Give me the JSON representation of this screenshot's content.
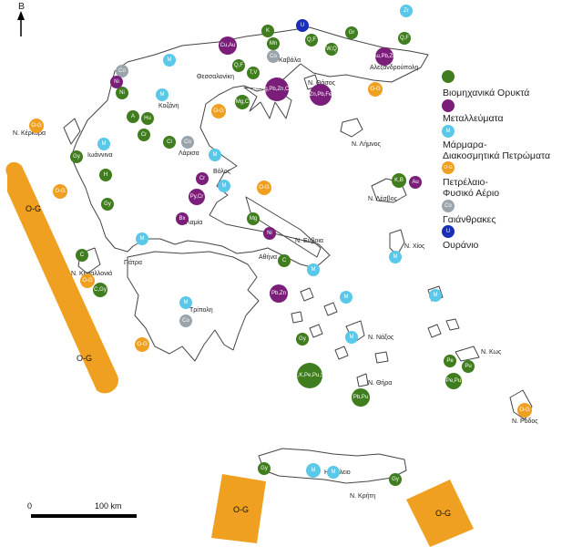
{
  "north": {
    "label": "B"
  },
  "legend": [
    {
      "label": "Βιομηχανικά Ορυκτά",
      "color": "#3f7d1e",
      "code": ""
    },
    {
      "label": "Μεταλλεύματα",
      "color": "#7b1e7a",
      "code": ""
    },
    {
      "label": "Μάρμαρα-",
      "label2": "Διακοσμητικά Πετρώματα",
      "color": "#5ac8e8",
      "code": "M"
    },
    {
      "label": "Πετρέλαιο-",
      "label2": "Φυσικό Αέριο",
      "color": "#f0a020",
      "code": "O-G"
    },
    {
      "label": "Γαιάνθρακες",
      "color": "#9aa4aa",
      "code": "Co"
    },
    {
      "label": "Ουράνιο",
      "color": "#1a2fb8",
      "code": "U"
    }
  ],
  "places": [
    {
      "name": "Θεσσαλονίκη"
    },
    {
      "name": "Καβάλα"
    },
    {
      "name": "Αλεξανδρούπολη"
    },
    {
      "name": "Ν. Θάσος"
    },
    {
      "name": "Κοζάνη"
    },
    {
      "name": "Ν. Κέρκυρα"
    },
    {
      "name": "Ιωάννινα"
    },
    {
      "name": "Λάρισα"
    },
    {
      "name": "Ν. Λήμνος"
    },
    {
      "name": "Βόλος"
    },
    {
      "name": "Λαμία"
    },
    {
      "name": "Ν. Λέσβος"
    },
    {
      "name": "Ν. Εύβοια"
    },
    {
      "name": "Ν. Χίος"
    },
    {
      "name": "Ν. Κεφαλλονιά"
    },
    {
      "name": "Πάτρα"
    },
    {
      "name": "Αθήνα"
    },
    {
      "name": "Τρίπολη"
    },
    {
      "name": "Ν. Νάξος"
    },
    {
      "name": "Ν. Κως"
    },
    {
      "name": "Ν. Θήρα"
    },
    {
      "name": "Ν. Ρόδος"
    },
    {
      "name": "Ηράκλειο"
    },
    {
      "name": "Ν. Κρήτη"
    }
  ],
  "offshore_label": "O-G",
  "markers": [
    {
      "type": "M",
      "label": "Zr"
    },
    {
      "type": "I",
      "label": "K"
    },
    {
      "type": "U",
      "label": "U"
    },
    {
      "type": "I",
      "label": "Q,F"
    },
    {
      "type": "I",
      "label": "Mn"
    },
    {
      "type": "Co",
      "label": "Co"
    },
    {
      "type": "I",
      "label": "Gr"
    },
    {
      "type": "I",
      "label": "W,Q"
    },
    {
      "type": "O",
      "label": "Au,Pb,Zn"
    },
    {
      "type": "I",
      "label": "Q,F"
    },
    {
      "type": "O",
      "label": "Cu,Au"
    },
    {
      "type": "I",
      "label": "Q,F"
    },
    {
      "type": "I",
      "label": "T,V"
    },
    {
      "type": "O",
      "label": "Au,Ag,Pb,Zn,Cu,Mn"
    },
    {
      "type": "O",
      "label": "Zn,Pb,Fe"
    },
    {
      "type": "Co",
      "label": "Co"
    },
    {
      "type": "I",
      "label": "Ni"
    },
    {
      "type": "I",
      "label": "Mg,C"
    },
    {
      "type": "I",
      "label": "A"
    },
    {
      "type": "I",
      "label": "Hu"
    },
    {
      "type": "I",
      "label": "Cr"
    },
    {
      "type": "I",
      "label": "Cl"
    },
    {
      "type": "Co",
      "label": "Co"
    },
    {
      "type": "I",
      "label": "Gy"
    },
    {
      "type": "I",
      "label": "H"
    },
    {
      "type": "O",
      "label": "Cr"
    },
    {
      "type": "O",
      "label": "Ni"
    },
    {
      "type": "I",
      "label": "Gy"
    },
    {
      "type": "O",
      "label": "Py,Cr"
    },
    {
      "type": "O",
      "label": "Bx"
    },
    {
      "type": "I",
      "label": "Mg"
    },
    {
      "type": "O",
      "label": "Ni"
    },
    {
      "type": "I",
      "label": "C"
    },
    {
      "type": "I",
      "label": "C"
    },
    {
      "type": "O",
      "label": "Pb,Zn"
    },
    {
      "type": "Co",
      "label": "Co"
    },
    {
      "type": "I",
      "label": "K,B"
    },
    {
      "type": "O",
      "label": "Au"
    },
    {
      "type": "I",
      "label": "Pe"
    },
    {
      "type": "I",
      "label": "Pu"
    },
    {
      "type": "I",
      "label": "Pe,Pu"
    },
    {
      "type": "I",
      "label": "B,K,Pe,Pu,Si"
    },
    {
      "type": "I",
      "label": "Pb,Pu"
    },
    {
      "type": "I",
      "label": "Gy"
    },
    {
      "type": "I",
      "label": "C,Gy"
    },
    {
      "type": "I",
      "label": "Gy"
    },
    {
      "type": "I",
      "label": "Gy"
    },
    {
      "type": "I",
      "label": "M"
    }
  ],
  "scale": {
    "zero": "0",
    "distance": "100 km"
  }
}
